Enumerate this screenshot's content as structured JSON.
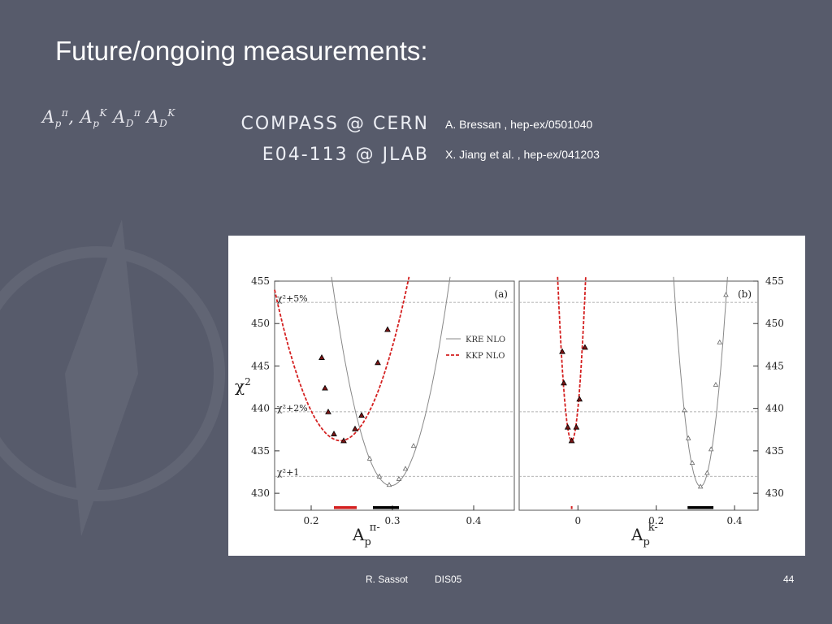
{
  "slide": {
    "title": "Future/ongoing measurements:",
    "footer_author": "R. Sassot",
    "footer_event": "DIS05",
    "page_number": "44"
  },
  "experiments": [
    {
      "name": "COMPASS @ CERN",
      "reference": "A. Bressan , hep-ex/0501040"
    },
    {
      "name": "E04-113 @ JLAB",
      "reference": "X. Jiang et al. , hep-ex/041203"
    }
  ],
  "colors": {
    "background": "#575b6b",
    "kre_line": "#888888",
    "kkp_line": "#d42020",
    "band_red": "#d42020",
    "band_black": "#000000"
  },
  "chart_data": [
    {
      "type": "line",
      "panel_label": "(a)",
      "ylabel": "χ²",
      "ylim": [
        428,
        455
      ],
      "yticks": [
        430,
        435,
        440,
        445,
        450,
        455
      ],
      "xlim": [
        0.155,
        0.45
      ],
      "xticks": [
        0.2,
        0.3,
        0.4
      ],
      "xticklabels": [
        "0.2",
        "0.3",
        "0.4"
      ],
      "reference_lines": [
        {
          "y": 452.5,
          "label": "χ²+5%"
        },
        {
          "y": 439.6,
          "label": "χ²+2%"
        },
        {
          "y": 432.0,
          "label": "χ²+1"
        }
      ],
      "legend": [
        {
          "name": "KRE NLO",
          "style": "solid"
        },
        {
          "name": "KKP NLO",
          "style": "dashed"
        }
      ],
      "series": [
        {
          "name": "KRE NLO",
          "a": 4620,
          "x0": 0.298,
          "ymin": 430.9,
          "points": [
            [
              0.272,
              434.1
            ],
            [
              0.284,
              432.0
            ],
            [
              0.296,
              431.0
            ],
            [
              0.308,
              431.7
            ],
            [
              0.316,
              432.9
            ],
            [
              0.326,
              435.6
            ]
          ]
        },
        {
          "name": "KKP NLO",
          "a": 2710,
          "x0": 0.236,
          "ymin": 436.2,
          "points": [
            [
              0.213,
              446.0
            ],
            [
              0.217,
              442.4
            ],
            [
              0.221,
              439.6
            ],
            [
              0.228,
              437.0
            ],
            [
              0.24,
              436.2
            ],
            [
              0.254,
              437.6
            ],
            [
              0.262,
              439.2
            ],
            [
              0.282,
              445.4
            ],
            [
              0.294,
              449.3
            ]
          ]
        }
      ],
      "bands": [
        {
          "x": [
            0.228,
            0.256
          ],
          "color": "red"
        },
        {
          "x": [
            0.276,
            0.308
          ],
          "color": "black"
        }
      ]
    },
    {
      "type": "line",
      "panel_label": "(b)",
      "ylim": [
        428,
        455
      ],
      "yticks": [
        430,
        435,
        440,
        445,
        450,
        455
      ],
      "xlim": [
        -0.15,
        0.46
      ],
      "xticks": [
        0,
        0.2,
        0.4
      ],
      "xticklabels": [
        "0",
        "0.2",
        "0.4"
      ],
      "reference_lines": [
        {
          "y": 452.5
        },
        {
          "y": 439.6
        },
        {
          "y": 432.0
        }
      ],
      "series": [
        {
          "name": "KKP NLO",
          "a": 15000,
          "x0": -0.016,
          "ymin": 436.2,
          "points": [
            [
              -0.04,
              446.7
            ],
            [
              -0.036,
              443.0
            ],
            [
              -0.026,
              437.8
            ],
            [
              -0.016,
              436.2
            ],
            [
              -0.004,
              437.8
            ],
            [
              0.004,
              441.1
            ],
            [
              0.018,
              447.2
            ]
          ]
        },
        {
          "name": "KRE NLO",
          "a": 5200,
          "x0": 0.313,
          "ymin": 430.8,
          "points": [
            [
              0.272,
              439.8
            ],
            [
              0.282,
              436.5
            ],
            [
              0.292,
              433.6
            ],
            [
              0.313,
              430.8
            ],
            [
              0.33,
              432.4
            ],
            [
              0.34,
              435.2
            ],
            [
              0.352,
              442.8
            ],
            [
              0.362,
              447.8
            ],
            [
              0.378,
              453.4
            ]
          ]
        }
      ],
      "bands": [
        {
          "x": [
            -0.018,
            -0.014
          ],
          "color": "red"
        },
        {
          "x": [
            0.28,
            0.346
          ],
          "color": "black"
        }
      ]
    }
  ]
}
